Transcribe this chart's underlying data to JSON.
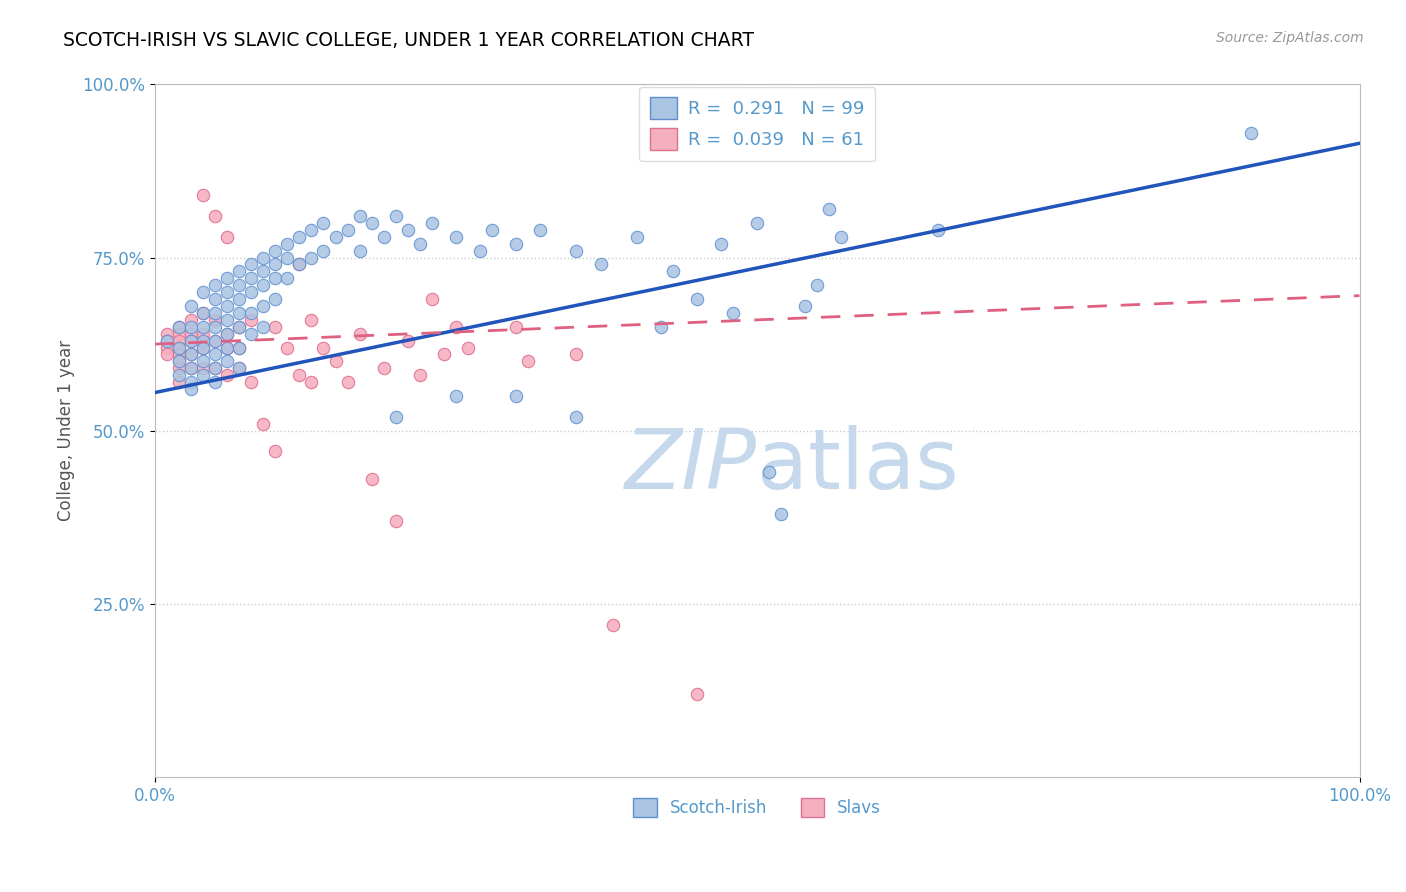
{
  "title": "SCOTCH-IRISH VS SLAVIC COLLEGE, UNDER 1 YEAR CORRELATION CHART",
  "source_text": "Source: ZipAtlas.com",
  "ylabel": "College, Under 1 year",
  "xlim": [
    0.0,
    1.0
  ],
  "ylim": [
    0.0,
    1.0
  ],
  "scotch_irish_R": 0.291,
  "scotch_irish_N": 99,
  "slavs_R": 0.039,
  "slavs_N": 61,
  "scotch_color": "#aac4e2",
  "scotch_edge_color": "#6090d0",
  "slavs_color": "#f5b0c0",
  "slavs_edge_color": "#e07090",
  "scotch_line_color": "#2255bb",
  "slavs_line_color": "#e06080",
  "watermark_color": "#c5d8ec",
  "background_color": "#ffffff",
  "grid_color": "#cccccc",
  "title_color": "#000000",
  "axis_tick_color": "#5599cc",
  "ylabel_color": "#555555",
  "scotch_irish_points": [
    [
      0.01,
      0.63
    ],
    [
      0.02,
      0.65
    ],
    [
      0.02,
      0.62
    ],
    [
      0.02,
      0.6
    ],
    [
      0.02,
      0.58
    ],
    [
      0.03,
      0.68
    ],
    [
      0.03,
      0.65
    ],
    [
      0.03,
      0.63
    ],
    [
      0.03,
      0.61
    ],
    [
      0.03,
      0.59
    ],
    [
      0.03,
      0.57
    ],
    [
      0.03,
      0.56
    ],
    [
      0.04,
      0.7
    ],
    [
      0.04,
      0.67
    ],
    [
      0.04,
      0.65
    ],
    [
      0.04,
      0.63
    ],
    [
      0.04,
      0.62
    ],
    [
      0.04,
      0.6
    ],
    [
      0.04,
      0.58
    ],
    [
      0.05,
      0.71
    ],
    [
      0.05,
      0.69
    ],
    [
      0.05,
      0.67
    ],
    [
      0.05,
      0.65
    ],
    [
      0.05,
      0.63
    ],
    [
      0.05,
      0.61
    ],
    [
      0.05,
      0.59
    ],
    [
      0.05,
      0.57
    ],
    [
      0.06,
      0.72
    ],
    [
      0.06,
      0.7
    ],
    [
      0.06,
      0.68
    ],
    [
      0.06,
      0.66
    ],
    [
      0.06,
      0.64
    ],
    [
      0.06,
      0.62
    ],
    [
      0.06,
      0.6
    ],
    [
      0.07,
      0.73
    ],
    [
      0.07,
      0.71
    ],
    [
      0.07,
      0.69
    ],
    [
      0.07,
      0.67
    ],
    [
      0.07,
      0.65
    ],
    [
      0.07,
      0.62
    ],
    [
      0.07,
      0.59
    ],
    [
      0.08,
      0.74
    ],
    [
      0.08,
      0.72
    ],
    [
      0.08,
      0.7
    ],
    [
      0.08,
      0.67
    ],
    [
      0.08,
      0.64
    ],
    [
      0.09,
      0.75
    ],
    [
      0.09,
      0.73
    ],
    [
      0.09,
      0.71
    ],
    [
      0.09,
      0.68
    ],
    [
      0.09,
      0.65
    ],
    [
      0.1,
      0.76
    ],
    [
      0.1,
      0.74
    ],
    [
      0.1,
      0.72
    ],
    [
      0.1,
      0.69
    ],
    [
      0.11,
      0.77
    ],
    [
      0.11,
      0.75
    ],
    [
      0.11,
      0.72
    ],
    [
      0.12,
      0.78
    ],
    [
      0.12,
      0.74
    ],
    [
      0.13,
      0.79
    ],
    [
      0.13,
      0.75
    ],
    [
      0.14,
      0.8
    ],
    [
      0.14,
      0.76
    ],
    [
      0.15,
      0.78
    ],
    [
      0.16,
      0.79
    ],
    [
      0.17,
      0.81
    ],
    [
      0.17,
      0.76
    ],
    [
      0.18,
      0.8
    ],
    [
      0.19,
      0.78
    ],
    [
      0.2,
      0.81
    ],
    [
      0.2,
      0.52
    ],
    [
      0.21,
      0.79
    ],
    [
      0.22,
      0.77
    ],
    [
      0.23,
      0.8
    ],
    [
      0.25,
      0.78
    ],
    [
      0.25,
      0.55
    ],
    [
      0.27,
      0.76
    ],
    [
      0.28,
      0.79
    ],
    [
      0.3,
      0.77
    ],
    [
      0.3,
      0.55
    ],
    [
      0.32,
      0.79
    ],
    [
      0.35,
      0.76
    ],
    [
      0.35,
      0.52
    ],
    [
      0.37,
      0.74
    ],
    [
      0.4,
      0.78
    ],
    [
      0.42,
      0.65
    ],
    [
      0.43,
      0.73
    ],
    [
      0.45,
      0.69
    ],
    [
      0.47,
      0.77
    ],
    [
      0.48,
      0.67
    ],
    [
      0.5,
      0.8
    ],
    [
      0.51,
      0.44
    ],
    [
      0.52,
      0.38
    ],
    [
      0.54,
      0.68
    ],
    [
      0.55,
      0.71
    ],
    [
      0.56,
      0.82
    ],
    [
      0.57,
      0.78
    ],
    [
      0.65,
      0.79
    ],
    [
      0.91,
      0.93
    ]
  ],
  "slavs_points": [
    [
      0.01,
      0.64
    ],
    [
      0.01,
      0.63
    ],
    [
      0.01,
      0.62
    ],
    [
      0.01,
      0.61
    ],
    [
      0.02,
      0.65
    ],
    [
      0.02,
      0.64
    ],
    [
      0.02,
      0.63
    ],
    [
      0.02,
      0.62
    ],
    [
      0.02,
      0.61
    ],
    [
      0.02,
      0.6
    ],
    [
      0.02,
      0.59
    ],
    [
      0.02,
      0.57
    ],
    [
      0.03,
      0.66
    ],
    [
      0.03,
      0.64
    ],
    [
      0.03,
      0.63
    ],
    [
      0.03,
      0.61
    ],
    [
      0.03,
      0.59
    ],
    [
      0.04,
      0.84
    ],
    [
      0.04,
      0.67
    ],
    [
      0.04,
      0.64
    ],
    [
      0.04,
      0.62
    ],
    [
      0.04,
      0.59
    ],
    [
      0.05,
      0.81
    ],
    [
      0.05,
      0.66
    ],
    [
      0.05,
      0.63
    ],
    [
      0.05,
      0.59
    ],
    [
      0.06,
      0.78
    ],
    [
      0.06,
      0.64
    ],
    [
      0.06,
      0.62
    ],
    [
      0.06,
      0.58
    ],
    [
      0.07,
      0.65
    ],
    [
      0.07,
      0.62
    ],
    [
      0.07,
      0.59
    ],
    [
      0.08,
      0.66
    ],
    [
      0.08,
      0.57
    ],
    [
      0.09,
      0.51
    ],
    [
      0.1,
      0.47
    ],
    [
      0.1,
      0.65
    ],
    [
      0.11,
      0.62
    ],
    [
      0.12,
      0.74
    ],
    [
      0.12,
      0.58
    ],
    [
      0.13,
      0.66
    ],
    [
      0.13,
      0.57
    ],
    [
      0.14,
      0.62
    ],
    [
      0.15,
      0.6
    ],
    [
      0.16,
      0.57
    ],
    [
      0.17,
      0.64
    ],
    [
      0.18,
      0.43
    ],
    [
      0.19,
      0.59
    ],
    [
      0.2,
      0.37
    ],
    [
      0.21,
      0.63
    ],
    [
      0.22,
      0.58
    ],
    [
      0.23,
      0.69
    ],
    [
      0.24,
      0.61
    ],
    [
      0.25,
      0.65
    ],
    [
      0.26,
      0.62
    ],
    [
      0.3,
      0.65
    ],
    [
      0.31,
      0.6
    ],
    [
      0.35,
      0.61
    ],
    [
      0.38,
      0.22
    ],
    [
      0.45,
      0.12
    ]
  ],
  "scotch_line_x": [
    0.0,
    1.0
  ],
  "scotch_line_y": [
    0.555,
    0.915
  ],
  "slavs_line_x": [
    0.0,
    1.0
  ],
  "slavs_line_y": [
    0.625,
    0.695
  ]
}
